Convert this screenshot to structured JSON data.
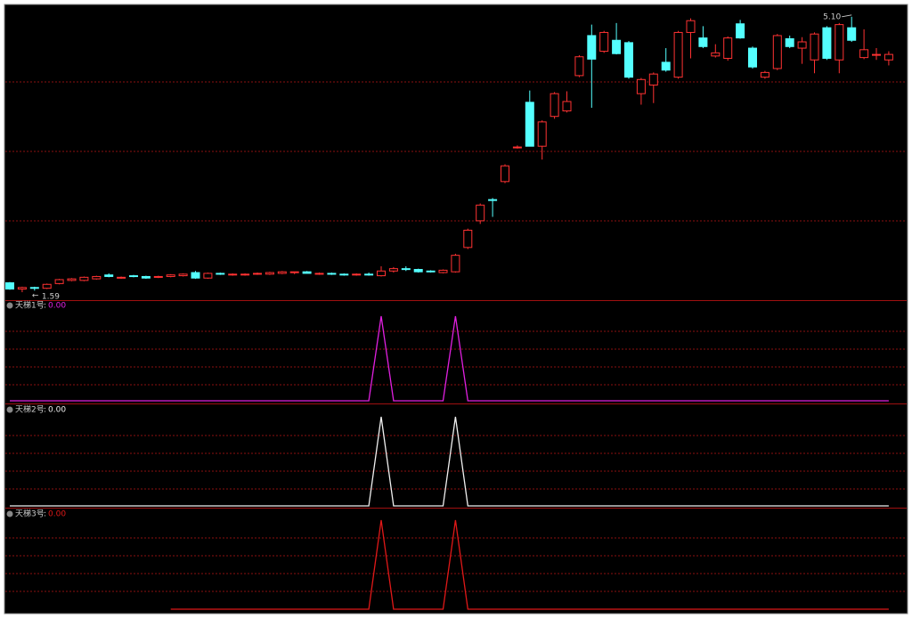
{
  "chart_data": [
    {
      "type": "candlestick",
      "open": [
        1.71,
        1.63,
        1.65,
        1.64,
        1.7,
        1.74,
        1.74,
        1.76,
        1.81,
        1.77,
        1.8,
        1.79,
        1.78,
        1.79,
        1.8,
        1.84,
        1.77,
        1.83,
        1.81,
        1.81,
        1.82,
        1.82,
        1.83,
        1.84,
        1.85,
        1.82,
        1.83,
        1.82,
        1.81,
        1.82,
        1.8,
        1.86,
        1.89,
        1.88,
        1.86,
        1.84,
        1.85,
        2.16,
        2.5,
        2.77,
        3.0,
        3.44,
        4.01,
        3.45,
        3.83,
        3.9,
        4.35,
        4.86,
        4.66,
        4.8,
        4.77,
        4.12,
        4.23,
        4.52,
        4.33,
        4.9,
        4.83,
        4.6,
        4.57,
        5.01,
        4.7,
        4.33,
        4.44,
        4.82,
        4.7,
        4.55,
        4.96,
        4.55,
        4.96,
        4.58,
        4.61,
        4.55
      ],
      "high": [
        1.72,
        1.66,
        1.66,
        1.7,
        1.76,
        1.77,
        1.79,
        1.8,
        1.83,
        1.79,
        1.81,
        1.8,
        1.8,
        1.82,
        1.83,
        1.86,
        1.84,
        1.84,
        1.83,
        1.83,
        1.84,
        1.85,
        1.86,
        1.85,
        1.86,
        1.84,
        1.84,
        1.83,
        1.83,
        1.84,
        1.92,
        1.91,
        1.92,
        1.89,
        1.87,
        1.88,
        2.08,
        2.4,
        2.72,
        2.79,
        3.22,
        3.46,
        4.16,
        3.78,
        4.14,
        4.15,
        4.61,
        5.0,
        4.92,
        5.02,
        4.79,
        4.32,
        4.39,
        4.7,
        4.92,
        5.08,
        4.98,
        4.75,
        4.85,
        5.06,
        4.72,
        4.41,
        4.88,
        4.86,
        4.84,
        4.9,
        4.98,
        5.02,
        5.1,
        4.94,
        4.7,
        4.66
      ],
      "low": [
        1.62,
        1.59,
        1.61,
        1.63,
        1.69,
        1.73,
        1.73,
        1.75,
        1.78,
        1.76,
        1.78,
        1.76,
        1.77,
        1.78,
        1.79,
        1.76,
        1.76,
        1.81,
        1.8,
        1.8,
        1.81,
        1.81,
        1.82,
        1.82,
        1.83,
        1.81,
        1.81,
        1.8,
        1.8,
        1.8,
        1.79,
        1.84,
        1.86,
        1.84,
        1.84,
        1.83,
        1.84,
        2.14,
        2.46,
        2.55,
        2.98,
        3.42,
        3.45,
        3.28,
        3.8,
        3.88,
        4.33,
        3.94,
        4.64,
        4.62,
        4.31,
        3.98,
        4.0,
        4.4,
        4.31,
        4.57,
        4.7,
        4.58,
        4.54,
        4.82,
        4.44,
        4.31,
        4.42,
        4.7,
        4.5,
        4.38,
        4.55,
        4.38,
        4.78,
        4.56,
        4.55,
        4.48
      ],
      "close": [
        1.63,
        1.65,
        1.64,
        1.69,
        1.75,
        1.76,
        1.78,
        1.79,
        1.79,
        1.78,
        1.79,
        1.77,
        1.79,
        1.81,
        1.82,
        1.77,
        1.83,
        1.82,
        1.82,
        1.82,
        1.83,
        1.84,
        1.85,
        1.85,
        1.83,
        1.83,
        1.82,
        1.81,
        1.82,
        1.81,
        1.86,
        1.89,
        1.88,
        1.85,
        1.85,
        1.87,
        2.06,
        2.38,
        2.7,
        2.76,
        3.2,
        3.44,
        3.45,
        3.76,
        4.12,
        4.02,
        4.59,
        4.56,
        4.9,
        4.63,
        4.33,
        4.3,
        4.37,
        4.42,
        4.9,
        5.05,
        4.72,
        4.64,
        4.83,
        4.83,
        4.46,
        4.39,
        4.86,
        4.72,
        4.78,
        4.88,
        4.57,
        5.0,
        4.8,
        4.68,
        4.62,
        4.62
      ],
      "up_color": "#ff3232",
      "down_color": "#54ffff",
      "ylim": [
        1.5,
        5.2
      ],
      "low_annotation": 1.59,
      "high_annotation": {
        "value": 5.1,
        "label": "5.10"
      }
    },
    {
      "type": "line",
      "title": "天梯1号",
      "current": {
        "value": 0,
        "label": "0.00"
      },
      "color": "#e020e0",
      "label_color": "#e020e0",
      "values": [
        0,
        0,
        0,
        0,
        0,
        0,
        0,
        0,
        0,
        0,
        0,
        0,
        0,
        0,
        0,
        0,
        0,
        0,
        0,
        0,
        0,
        0,
        0,
        0,
        0,
        0,
        0,
        0,
        0,
        0,
        1,
        0,
        0,
        0,
        0,
        0,
        1,
        0,
        0,
        0,
        0,
        0,
        0,
        0,
        0,
        0,
        0,
        0,
        0,
        0,
        0,
        0,
        0,
        0,
        0,
        0,
        0,
        0,
        0,
        0,
        0,
        0,
        0,
        0,
        0,
        0,
        0,
        0,
        0,
        0,
        0,
        0
      ],
      "ylim": [
        0,
        1
      ]
    },
    {
      "type": "line",
      "title": "天梯2号",
      "current": {
        "value": 0,
        "label": "0.00"
      },
      "color": "#f0f0f0",
      "label_color": "#f0f0f0",
      "values": [
        0,
        0,
        0,
        0,
        0,
        0,
        0,
        0,
        0,
        0,
        0,
        0,
        0,
        0,
        0,
        0,
        0,
        0,
        0,
        0,
        0,
        0,
        0,
        0,
        0,
        0,
        0,
        0,
        0,
        0,
        1,
        0,
        0,
        0,
        0,
        0,
        1,
        0,
        0,
        0,
        0,
        0,
        0,
        0,
        0,
        0,
        0,
        0,
        0,
        0,
        0,
        0,
        0,
        0,
        0,
        0,
        0,
        0,
        0,
        0,
        0,
        0,
        0,
        0,
        0,
        0,
        0,
        0,
        0,
        0,
        0,
        0
      ],
      "ylim": [
        0,
        1
      ]
    },
    {
      "type": "line",
      "title": "天梯3号",
      "current": {
        "value": 0,
        "label": "0.00"
      },
      "color": "#e01818",
      "label_color": "#e01818",
      "values": [
        null,
        null,
        null,
        null,
        null,
        null,
        null,
        null,
        null,
        null,
        null,
        null,
        null,
        0,
        0,
        0,
        0,
        0,
        0,
        0,
        0,
        0,
        0,
        0,
        0,
        0,
        0,
        0,
        0,
        0,
        1,
        0,
        0,
        0,
        0,
        0,
        1,
        0,
        0,
        0,
        0,
        0,
        0,
        0,
        0,
        0,
        0,
        0,
        0,
        0,
        0,
        0,
        0,
        0,
        0,
        0,
        0,
        0,
        0,
        0,
        0,
        0,
        0,
        0,
        0,
        0,
        0,
        0,
        0,
        0,
        0,
        0
      ],
      "ylim": [
        0,
        1
      ]
    }
  ]
}
